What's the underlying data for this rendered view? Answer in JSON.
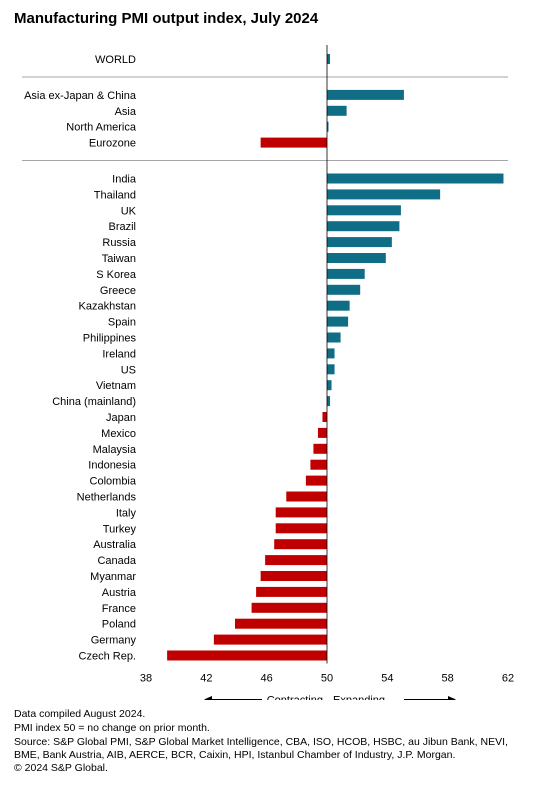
{
  "title": "Manufacturing PMI output index, July 2024",
  "chart_data": {
    "type": "bar",
    "orientation": "horizontal",
    "title": "Manufacturing PMI output index, July 2024",
    "xlim": [
      38,
      62
    ],
    "xticks": [
      38,
      42,
      46,
      50,
      54,
      58,
      62
    ],
    "baseline": 50,
    "colors": {
      "expanding": "#0f6e85",
      "contracting": "#c00000",
      "divider": "#a6a6a6"
    },
    "arrow_labels": {
      "left": "Contracting",
      "right": "Expanding"
    },
    "groups": [
      {
        "items": [
          {
            "label": "WORLD",
            "value": 50.2
          }
        ]
      },
      {
        "items": [
          {
            "label": "Asia ex-Japan & China",
            "value": 55.1
          },
          {
            "label": "Asia",
            "value": 51.3
          },
          {
            "label": "North America",
            "value": 50.1
          },
          {
            "label": "Eurozone",
            "value": 45.6
          }
        ]
      },
      {
        "items": [
          {
            "label": "India",
            "value": 61.7
          },
          {
            "label": "Thailand",
            "value": 57.5
          },
          {
            "label": "UK",
            "value": 54.9
          },
          {
            "label": "Brazil",
            "value": 54.8
          },
          {
            "label": "Russia",
            "value": 54.3
          },
          {
            "label": "Taiwan",
            "value": 53.9
          },
          {
            "label": "S Korea",
            "value": 52.5
          },
          {
            "label": "Greece",
            "value": 52.2
          },
          {
            "label": "Kazakhstan",
            "value": 51.5
          },
          {
            "label": "Spain",
            "value": 51.4
          },
          {
            "label": "Philippines",
            "value": 50.9
          },
          {
            "label": "Ireland",
            "value": 50.5
          },
          {
            "label": "US",
            "value": 50.5
          },
          {
            "label": "Vietnam",
            "value": 50.3
          },
          {
            "label": "China (mainland)",
            "value": 50.2
          },
          {
            "label": "Japan",
            "value": 49.7
          },
          {
            "label": "Mexico",
            "value": 49.4
          },
          {
            "label": "Malaysia",
            "value": 49.1
          },
          {
            "label": "Indonesia",
            "value": 48.9
          },
          {
            "label": "Colombia",
            "value": 48.6
          },
          {
            "label": "Netherlands",
            "value": 47.3
          },
          {
            "label": "Italy",
            "value": 46.6
          },
          {
            "label": "Turkey",
            "value": 46.6
          },
          {
            "label": "Australia",
            "value": 46.5
          },
          {
            "label": "Canada",
            "value": 45.9
          },
          {
            "label": "Myanmar",
            "value": 45.6
          },
          {
            "label": "Austria",
            "value": 45.3
          },
          {
            "label": "France",
            "value": 45.0
          },
          {
            "label": "Poland",
            "value": 43.9
          },
          {
            "label": "Germany",
            "value": 42.5
          },
          {
            "label": "Czech Rep.",
            "value": 39.4
          }
        ]
      }
    ]
  },
  "footnotes": [
    "Data compiled August 2024.",
    "PMI index 50 = no change on prior month.",
    "Source: S&P Global PMI, S&P Global Market Intelligence, CBA, ISO, HCOB, HSBC, au Jibun Bank, NEVI, BME, Bank Austria, AIB, AERCE, BCR, Caixin, HPI, Istanbul Chamber of Industry, J.P. Morgan.",
    "© 2024 S&P Global."
  ]
}
